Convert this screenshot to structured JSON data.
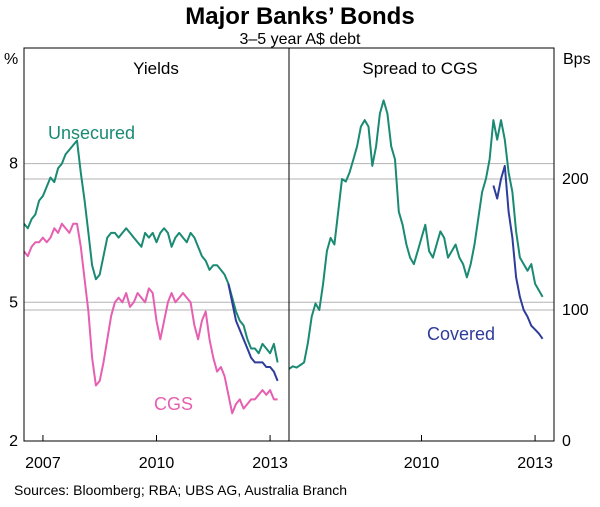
{
  "title": "Major Banks’ Bonds",
  "subtitle": "3–5 year A$ debt",
  "source": "Sources: Bloomberg; RBA; UBS AG, Australia Branch",
  "colors": {
    "unsecured": "#1a8a73",
    "cgs": "#e65fb0",
    "covered": "#2e3c9a",
    "grid": "#b3b3b3",
    "axis": "#000000"
  },
  "chart_data": [
    {
      "type": "line",
      "panel_title": "Yields",
      "unit_label": "%",
      "x_range": [
        2006.5,
        2013.5
      ],
      "ylim": [
        2,
        10.5
      ],
      "y_ticks": [
        2,
        5,
        8
      ],
      "x_ticks": [
        "2007",
        "2010",
        "2013"
      ],
      "x_tick_values": [
        2007,
        2010,
        2013
      ],
      "grid": true,
      "series": [
        {
          "name": "Unsecured",
          "color": "#1a8a73",
          "x": [
            2006.5,
            2006.6,
            2006.7,
            2006.8,
            2006.9,
            2007.0,
            2007.1,
            2007.2,
            2007.3,
            2007.4,
            2007.5,
            2007.6,
            2007.7,
            2007.8,
            2007.9,
            2008.0,
            2008.1,
            2008.2,
            2008.3,
            2008.4,
            2008.5,
            2008.6,
            2008.7,
            2008.8,
            2008.9,
            2009.0,
            2009.1,
            2009.2,
            2009.3,
            2009.4,
            2009.5,
            2009.6,
            2009.7,
            2009.8,
            2009.9,
            2010.0,
            2010.1,
            2010.2,
            2010.3,
            2010.4,
            2010.5,
            2010.6,
            2010.7,
            2010.8,
            2010.9,
            2011.0,
            2011.1,
            2011.2,
            2011.3,
            2011.4,
            2011.5,
            2011.6,
            2011.7,
            2011.8,
            2011.9,
            2012.0,
            2012.1,
            2012.2,
            2012.3,
            2012.4,
            2012.5,
            2012.6,
            2012.7,
            2012.8,
            2012.9,
            2013.0,
            2013.1,
            2013.2
          ],
          "values": [
            6.7,
            6.6,
            6.8,
            6.9,
            7.2,
            7.3,
            7.5,
            7.7,
            7.6,
            7.9,
            8.0,
            8.2,
            8.3,
            8.4,
            8.5,
            7.8,
            7.2,
            6.5,
            5.8,
            5.5,
            5.6,
            6.0,
            6.4,
            6.5,
            6.5,
            6.4,
            6.5,
            6.6,
            6.5,
            6.4,
            6.3,
            6.2,
            6.5,
            6.4,
            6.5,
            6.3,
            6.5,
            6.6,
            6.5,
            6.2,
            6.4,
            6.5,
            6.4,
            6.3,
            6.5,
            6.4,
            6.2,
            6.0,
            5.9,
            5.7,
            5.8,
            5.8,
            5.7,
            5.6,
            5.4,
            5.1,
            4.8,
            4.6,
            4.5,
            4.2,
            4.0,
            4.0,
            3.9,
            4.1,
            4.0,
            3.9,
            4.1,
            3.7
          ]
        },
        {
          "name": "CGS",
          "color": "#e65fb0",
          "x": [
            2006.5,
            2006.6,
            2006.7,
            2006.8,
            2006.9,
            2007.0,
            2007.1,
            2007.2,
            2007.3,
            2007.4,
            2007.5,
            2007.6,
            2007.7,
            2007.8,
            2007.9,
            2008.0,
            2008.1,
            2008.2,
            2008.3,
            2008.4,
            2008.5,
            2008.6,
            2008.7,
            2008.8,
            2008.9,
            2009.0,
            2009.1,
            2009.2,
            2009.3,
            2009.4,
            2009.5,
            2009.6,
            2009.7,
            2009.8,
            2009.9,
            2010.0,
            2010.1,
            2010.2,
            2010.3,
            2010.4,
            2010.5,
            2010.6,
            2010.7,
            2010.8,
            2010.9,
            2011.0,
            2011.1,
            2011.2,
            2011.3,
            2011.4,
            2011.5,
            2011.6,
            2011.7,
            2011.8,
            2011.9,
            2012.0,
            2012.1,
            2012.2,
            2012.3,
            2012.4,
            2012.5,
            2012.6,
            2012.7,
            2012.8,
            2012.9,
            2013.0,
            2013.1,
            2013.2
          ],
          "values": [
            6.1,
            6.0,
            6.2,
            6.3,
            6.3,
            6.4,
            6.3,
            6.4,
            6.6,
            6.5,
            6.7,
            6.6,
            6.5,
            6.7,
            6.7,
            6.2,
            5.5,
            4.8,
            3.8,
            3.2,
            3.3,
            3.7,
            4.2,
            4.7,
            5.0,
            5.1,
            5.0,
            5.2,
            4.9,
            5.0,
            5.2,
            5.1,
            5.0,
            5.3,
            5.2,
            4.6,
            4.2,
            4.6,
            5.0,
            5.2,
            5.0,
            5.1,
            5.2,
            5.1,
            5.0,
            4.5,
            4.2,
            4.6,
            4.8,
            4.2,
            3.8,
            3.5,
            3.6,
            3.4,
            3.0,
            2.6,
            2.8,
            2.9,
            2.7,
            2.8,
            2.9,
            2.9,
            3.0,
            3.1,
            3.0,
            3.1,
            2.9,
            2.9
          ]
        },
        {
          "name": "Covered",
          "color": "#2e3c9a",
          "x": [
            2011.9,
            2012.0,
            2012.1,
            2012.2,
            2012.3,
            2012.4,
            2012.5,
            2012.6,
            2012.7,
            2012.8,
            2012.9,
            2013.0,
            2013.1,
            2013.2
          ],
          "values": [
            5.4,
            5.0,
            4.6,
            4.4,
            4.2,
            4.0,
            3.8,
            3.7,
            3.7,
            3.7,
            3.6,
            3.6,
            3.5,
            3.3
          ]
        }
      ]
    },
    {
      "type": "line",
      "panel_title": "Spread to CGS",
      "unit_label": "Bps",
      "x_range": [
        2006.5,
        2013.5
      ],
      "ylim": [
        0,
        300
      ],
      "y_ticks": [
        0,
        100,
        200
      ],
      "x_ticks": [
        "2010",
        "2013"
      ],
      "x_tick_values": [
        2010,
        2013
      ],
      "grid": true,
      "series": [
        {
          "name": "Unsecured",
          "color": "#1a8a73",
          "x": [
            2006.5,
            2006.6,
            2006.7,
            2006.8,
            2006.9,
            2007.0,
            2007.1,
            2007.2,
            2007.3,
            2007.4,
            2007.5,
            2007.6,
            2007.7,
            2007.8,
            2007.9,
            2008.0,
            2008.1,
            2008.2,
            2008.3,
            2008.4,
            2008.5,
            2008.6,
            2008.7,
            2008.8,
            2008.9,
            2009.0,
            2009.1,
            2009.2,
            2009.3,
            2009.4,
            2009.5,
            2009.6,
            2009.7,
            2009.8,
            2009.9,
            2010.0,
            2010.1,
            2010.2,
            2010.3,
            2010.4,
            2010.5,
            2010.6,
            2010.7,
            2010.8,
            2010.9,
            2011.0,
            2011.1,
            2011.2,
            2011.3,
            2011.4,
            2011.5,
            2011.6,
            2011.7,
            2011.8,
            2011.9,
            2012.0,
            2012.1,
            2012.2,
            2012.3,
            2012.4,
            2012.5,
            2012.6,
            2012.7,
            2012.8,
            2012.9,
            2013.0,
            2013.1,
            2013.2
          ],
          "values": [
            55,
            57,
            56,
            58,
            60,
            75,
            95,
            105,
            100,
            120,
            145,
            155,
            150,
            175,
            200,
            198,
            205,
            215,
            225,
            240,
            245,
            240,
            210,
            225,
            250,
            260,
            250,
            225,
            215,
            175,
            165,
            150,
            140,
            135,
            145,
            155,
            165,
            145,
            140,
            150,
            160,
            155,
            140,
            145,
            150,
            140,
            135,
            125,
            135,
            150,
            170,
            190,
            200,
            215,
            245,
            230,
            245,
            230,
            205,
            190,
            160,
            140,
            135,
            130,
            135,
            120,
            115,
            110
          ]
        },
        {
          "name": "Covered",
          "color": "#2e3c9a",
          "x": [
            2011.9,
            2012.0,
            2012.1,
            2012.2,
            2012.3,
            2012.4,
            2012.5,
            2012.6,
            2012.7,
            2012.8,
            2012.9,
            2013.0,
            2013.1,
            2013.2
          ],
          "values": [
            195,
            185,
            200,
            210,
            175,
            155,
            125,
            110,
            100,
            95,
            88,
            85,
            82,
            78
          ]
        }
      ]
    }
  ],
  "labels": {
    "unsecured": "Unsecured",
    "cgs": "CGS",
    "covered": "Covered"
  }
}
